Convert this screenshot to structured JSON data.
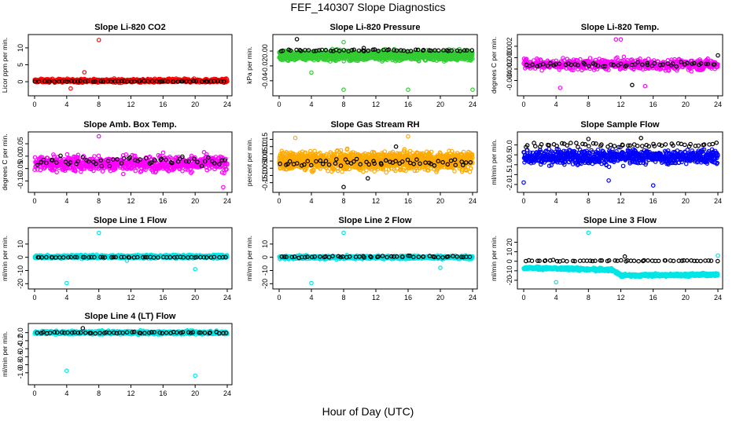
{
  "figure": {
    "title": "FEF_140307  Slope Diagnostics",
    "xlabel": "Hour of Day (UTC)"
  },
  "chart_data": [
    {
      "type": "scatter",
      "title": "Slope Li-820 CO2",
      "ylabel": "Licor ppm per min.",
      "xlim": [
        0,
        24
      ],
      "ylim": [
        -3,
        13
      ],
      "x_ticks": [
        0,
        4,
        8,
        12,
        16,
        20,
        24
      ],
      "y_ticks": [
        0,
        5,
        10
      ],
      "y_tick_labels": [
        "0",
        "5",
        "10"
      ],
      "grid": false,
      "series": [
        {
          "color": "#ff0000",
          "n": 700,
          "center": 0.3,
          "spread": 1.0,
          "outliers": [
            {
              "x": 8.0,
              "y": 12.3
            },
            {
              "x": 4.5,
              "y": -2.0
            },
            {
              "x": 6.2,
              "y": 2.8
            }
          ]
        },
        {
          "color": "#000000",
          "n": 55,
          "center": 0.1,
          "spread": 0.2,
          "outliers": []
        }
      ]
    },
    {
      "type": "scatter",
      "title": "Slope Li-820 Pressure",
      "ylabel": "kPa per min.",
      "xlim": [
        0,
        24
      ],
      "ylim": [
        -0.055,
        0.018
      ],
      "x_ticks": [
        0,
        4,
        8,
        12,
        16,
        20,
        24
      ],
      "y_ticks": [
        0,
        -0.02,
        -0.04
      ],
      "y_tick_labels": [
        "0.00",
        "-0.02",
        "-0.04"
      ],
      "grid": false,
      "series": [
        {
          "color": "#33cc33",
          "n": 1500,
          "center": -0.006,
          "spread": 0.012,
          "outliers": [
            {
              "x": 8.0,
              "y": -0.052
            },
            {
              "x": 16.0,
              "y": -0.052
            },
            {
              "x": 24.0,
              "y": -0.052
            },
            {
              "x": 4.0,
              "y": -0.029
            },
            {
              "x": 8.0,
              "y": 0.012
            }
          ]
        },
        {
          "color": "#000000",
          "n": 55,
          "center": 0.001,
          "spread": 0.003,
          "outliers": [
            {
              "x": 2.2,
              "y": 0.016
            },
            {
              "x": 10.5,
              "y": 0.004
            }
          ]
        }
      ]
    },
    {
      "type": "scatter",
      "title": "Slope Li-820 Temp.",
      "ylabel": "degrees C per min.",
      "xlim": [
        0,
        24
      ],
      "ylim": [
        -0.006,
        0.0035
      ],
      "x_ticks": [
        0,
        4,
        8,
        12,
        16,
        20,
        24
      ],
      "y_ticks": [
        0.002,
        0,
        -0.002,
        -0.004
      ],
      "y_tick_labels": [
        "0.002",
        "0.000",
        "-0.002",
        "-0.004"
      ],
      "grid": false,
      "series": [
        {
          "color": "#ff00ff",
          "n": 600,
          "center": -0.0012,
          "spread": 0.0018,
          "outliers": [
            {
              "x": 12.0,
              "y": 0.0032
            },
            {
              "x": 11.4,
              "y": 0.0032
            },
            {
              "x": 4.5,
              "y": -0.0053
            },
            {
              "x": 15.0,
              "y": -0.005
            }
          ]
        },
        {
          "color": "#000000",
          "n": 55,
          "center": -0.0012,
          "spread": 0.0008,
          "outliers": [
            {
              "x": 13.4,
              "y": -0.0048
            },
            {
              "x": 24.0,
              "y": 0.0004
            }
          ]
        }
      ]
    },
    {
      "type": "scatter",
      "title": "Slope Amb. Box Temp.",
      "ylabel": "degrees C per min.",
      "xlim": [
        0,
        24
      ],
      "ylim": [
        -0.13,
        0.085
      ],
      "x_ticks": [
        0,
        4,
        8,
        12,
        16,
        20,
        24
      ],
      "y_ticks": [
        0.05,
        0,
        -0.05,
        -0.1
      ],
      "y_tick_labels": [
        "0.05",
        "0.00",
        "-0.05",
        "-0.10"
      ],
      "grid": false,
      "series": [
        {
          "color": "#ff00ff",
          "n": 700,
          "center": -0.03,
          "spread": 0.06,
          "outliers": [
            {
              "x": 8.0,
              "y": 0.08
            },
            {
              "x": 23.5,
              "y": -0.125
            }
          ]
        },
        {
          "color": "#000000",
          "n": 55,
          "center": -0.02,
          "spread": 0.04,
          "outliers": []
        }
      ]
    },
    {
      "type": "scatter",
      "title": "Slope Gas Stream RH",
      "ylabel": "percent per min.",
      "xlim": [
        0,
        24
      ],
      "ylim": [
        -0.19,
        0.18
      ],
      "x_ticks": [
        0,
        4,
        8,
        12,
        16,
        20,
        24
      ],
      "y_ticks": [
        0.15,
        0.1,
        0.05,
        0,
        -0.05,
        -0.1,
        -0.15
      ],
      "y_tick_labels": [
        "0.15",
        "0.10",
        "0.05",
        "0.00",
        "-0.05",
        "-0.10",
        "-0.15"
      ],
      "grid": false,
      "series": [
        {
          "color": "#ffaa00",
          "n": 1500,
          "center": 0.0,
          "spread": 0.12,
          "outliers": [
            {
              "x": 2.0,
              "y": 0.16
            },
            {
              "x": 16.0,
              "y": 0.17
            }
          ]
        },
        {
          "color": "#000000",
          "n": 55,
          "center": -0.01,
          "spread": 0.05,
          "outliers": [
            {
              "x": 8.0,
              "y": -0.18
            },
            {
              "x": 11.0,
              "y": -0.12
            },
            {
              "x": 14.5,
              "y": 0.1
            }
          ]
        }
      ]
    },
    {
      "type": "scatter",
      "title": "Slope Sample Flow",
      "ylabel": "ml/min per min.",
      "xlim": [
        0,
        24
      ],
      "ylim": [
        -2.2,
        0.5
      ],
      "x_ticks": [
        0,
        4,
        8,
        12,
        16,
        20,
        24
      ],
      "y_ticks": [
        0,
        -0.5,
        -1,
        -1.5,
        -2
      ],
      "y_tick_labels": [
        "0.0",
        "-0.5",
        "-1.0",
        "-1.5",
        "-2.0"
      ],
      "grid": false,
      "series": [
        {
          "color": "#0000ff",
          "n": 800,
          "center": -0.6,
          "spread": 0.7,
          "outliers": [
            {
              "x": 0.0,
              "y": -1.9
            },
            {
              "x": 16.0,
              "y": -2.05
            },
            {
              "x": 10.5,
              "y": -1.8
            }
          ]
        },
        {
          "color": "#000000",
          "n": 55,
          "center": 0.0,
          "spread": 0.25,
          "outliers": [
            {
              "x": 14.5,
              "y": 0.35
            },
            {
              "x": 8.0,
              "y": 0.3
            }
          ]
        }
      ]
    },
    {
      "type": "scatter",
      "title": "Slope Line 1 Flow",
      "ylabel": "ml/min per min.",
      "xlim": [
        0,
        24
      ],
      "ylim": [
        -21,
        20
      ],
      "x_ticks": [
        0,
        4,
        8,
        12,
        16,
        20,
        24
      ],
      "y_ticks": [
        10,
        0,
        -10,
        -20
      ],
      "y_tick_labels": [
        "10",
        "0",
        "-10",
        "-20"
      ],
      "grid": false,
      "series": [
        {
          "color": "#00e5e5",
          "n": 700,
          "center": 0.5,
          "spread": 2.5,
          "outliers": [
            {
              "x": 8.0,
              "y": 18.5
            },
            {
              "x": 4.0,
              "y": -19.5
            },
            {
              "x": 20.0,
              "y": -9.0
            },
            {
              "x": 11.5,
              "y": -2.5
            }
          ]
        },
        {
          "color": "#000000",
          "n": 55,
          "center": 0.0,
          "spread": 0.3,
          "outliers": []
        }
      ]
    },
    {
      "type": "scatter",
      "title": "Slope Line 2 Flow",
      "ylabel": "ml/min per min.",
      "xlim": [
        0,
        24
      ],
      "ylim": [
        -21,
        20
      ],
      "x_ticks": [
        0,
        4,
        8,
        12,
        16,
        20,
        24
      ],
      "y_ticks": [
        10,
        0,
        -10,
        -20
      ],
      "y_tick_labels": [
        "10",
        "0",
        "-10",
        "-20"
      ],
      "grid": false,
      "series": [
        {
          "color": "#00e5e5",
          "n": 700,
          "center": 0.0,
          "spread": 2.5,
          "outliers": [
            {
              "x": 8.0,
              "y": 18.5
            },
            {
              "x": 4.0,
              "y": -19.5
            },
            {
              "x": 20.0,
              "y": -8.0
            }
          ]
        },
        {
          "color": "#000000",
          "n": 55,
          "center": 0.5,
          "spread": 1.2,
          "outliers": []
        }
      ]
    },
    {
      "type": "scatter",
      "title": "Slope Line 3 Flow",
      "ylabel": "ml/min per min.",
      "xlim": [
        0,
        24
      ],
      "ylim": [
        -25,
        32
      ],
      "x_ticks": [
        0,
        4,
        8,
        12,
        16,
        20,
        24
      ],
      "y_ticks": [
        20,
        10,
        0,
        -10,
        -20
      ],
      "y_tick_labels": [
        "20",
        "10",
        "0",
        "-10",
        "-20"
      ],
      "grid": false,
      "series": [
        {
          "color": "#00e5e5",
          "n": 800,
          "center": -10.0,
          "spread": 3.0,
          "trend": [
            {
              "x": 0,
              "y": -7
            },
            {
              "x": 11,
              "y": -9
            },
            {
              "x": 12,
              "y": -15
            },
            {
              "x": 24,
              "y": -14
            }
          ],
          "outliers": [
            {
              "x": 8.0,
              "y": 30.0
            },
            {
              "x": 4.0,
              "y": -22.0
            },
            {
              "x": 24.0,
              "y": 6.0
            }
          ]
        },
        {
          "color": "#000000",
          "n": 55,
          "center": 0.5,
          "spread": 1.5,
          "outliers": [
            {
              "x": 12.5,
              "y": 5.0
            }
          ]
        }
      ]
    },
    {
      "type": "scatter",
      "title": "Slope Line 4 (LT) Flow",
      "ylabel": "ml/min per min.",
      "xlim": [
        0,
        24
      ],
      "ylim": [
        -1.2,
        0.15
      ],
      "x_ticks": [
        0,
        4,
        8,
        12,
        16,
        20,
        24
      ],
      "y_ticks": [
        0,
        -0.2,
        -0.4,
        -0.6,
        -0.8,
        -1
      ],
      "y_tick_labels": [
        "0.0",
        "-0.2",
        "-0.4",
        "-0.6",
        "-0.8",
        "-1.0"
      ],
      "grid": false,
      "series": [
        {
          "color": "#00e5e5",
          "n": 700,
          "center": 0.0,
          "spread": 0.08,
          "outliers": [
            {
              "x": 4.0,
              "y": -0.95
            },
            {
              "x": 20.0,
              "y": -1.07
            }
          ]
        },
        {
          "color": "#000000",
          "n": 55,
          "center": 0.0,
          "spread": 0.04,
          "outliers": [
            {
              "x": 6.0,
              "y": 0.11
            }
          ]
        }
      ]
    }
  ]
}
